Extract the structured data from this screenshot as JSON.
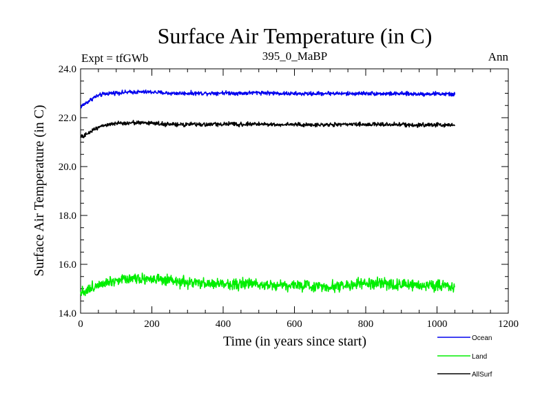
{
  "chart_data": {
    "type": "line",
    "title": "Surface Air Temperature (in C)",
    "subtitle": "395_0_MaBP",
    "left_label": "Expt = tfGWb",
    "right_label": "Ann",
    "xlabel": "Time (in years since start)",
    "ylabel": "Surface Air Temperature (in C)",
    "xlim": [
      0,
      1200
    ],
    "ylim": [
      14.0,
      24.0
    ],
    "x_ticks": [
      0,
      200,
      400,
      600,
      800,
      1000,
      1200
    ],
    "x_tick_labels": [
      "0",
      "200",
      "400",
      "600",
      "800",
      "1000",
      "1200"
    ],
    "y_ticks": [
      14.0,
      16.0,
      18.0,
      20.0,
      22.0,
      24.0
    ],
    "y_tick_labels": [
      "14.0",
      "16.0",
      "18.0",
      "20.0",
      "22.0",
      "24.0"
    ],
    "x_minor_step": 50,
    "y_minor_step": 0.5,
    "legend_position": "bottom-right, outside plot",
    "series": [
      {
        "name": "Ocean",
        "color": "#0000ee",
        "x": [
          0,
          10,
          20,
          30,
          40,
          50,
          60,
          80,
          100,
          120,
          150,
          200,
          250,
          300,
          350,
          400,
          450,
          500,
          550,
          600,
          650,
          700,
          750,
          800,
          850,
          900,
          950,
          1000,
          1050
        ],
        "y": [
          22.45,
          22.55,
          22.65,
          22.75,
          22.85,
          22.9,
          22.95,
          23.0,
          23.02,
          23.03,
          23.05,
          23.05,
          23.0,
          23.0,
          23.0,
          23.02,
          23.0,
          23.03,
          23.0,
          22.98,
          22.98,
          23.0,
          22.98,
          23.0,
          22.98,
          22.98,
          22.97,
          22.98,
          22.95
        ],
        "noise": 0.05
      },
      {
        "name": "Land",
        "color": "#00ee00",
        "x": [
          0,
          10,
          20,
          30,
          40,
          50,
          60,
          80,
          100,
          120,
          150,
          200,
          250,
          300,
          350,
          400,
          450,
          500,
          550,
          600,
          650,
          700,
          750,
          800,
          850,
          900,
          950,
          1000,
          1050
        ],
        "y": [
          14.9,
          14.9,
          14.95,
          15.0,
          15.1,
          15.2,
          15.25,
          15.3,
          15.35,
          15.4,
          15.45,
          15.4,
          15.3,
          15.25,
          15.2,
          15.2,
          15.2,
          15.2,
          15.15,
          15.15,
          15.1,
          15.1,
          15.15,
          15.2,
          15.2,
          15.15,
          15.15,
          15.15,
          15.1
        ],
        "noise": 0.14
      },
      {
        "name": "AllSurf",
        "color": "#000000",
        "x": [
          0,
          10,
          20,
          30,
          40,
          50,
          60,
          80,
          100,
          120,
          150,
          200,
          250,
          300,
          350,
          400,
          450,
          500,
          550,
          600,
          650,
          700,
          750,
          800,
          850,
          900,
          950,
          1000,
          1050
        ],
        "y": [
          21.2,
          21.25,
          21.35,
          21.45,
          21.55,
          21.62,
          21.68,
          21.72,
          21.75,
          21.78,
          21.8,
          21.78,
          21.72,
          21.72,
          21.72,
          21.74,
          21.73,
          21.74,
          21.72,
          21.72,
          21.7,
          21.72,
          21.72,
          21.73,
          21.72,
          21.72,
          21.7,
          21.71,
          21.7
        ],
        "noise": 0.05
      }
    ]
  }
}
